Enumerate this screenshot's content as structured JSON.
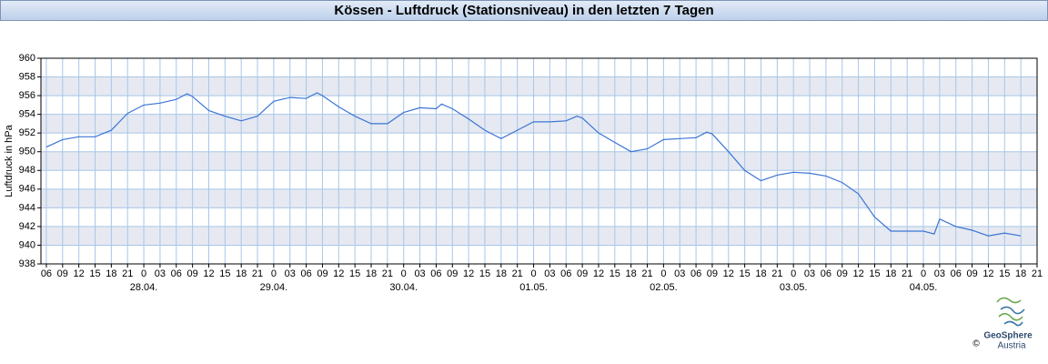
{
  "chart_data": {
    "type": "line",
    "title": "Kössen - Luftdruck (Stationsniveau) in den letzten 7 Tagen",
    "y_label": "Luftdruck in hPa",
    "color": "#3b74d6",
    "grid": true,
    "x": [
      -18,
      -15,
      -12,
      -9,
      -6,
      -3,
      0,
      3,
      6,
      8,
      9,
      12,
      15,
      18,
      21,
      24,
      27,
      30,
      32,
      33,
      36,
      39,
      42,
      45,
      48,
      51,
      54,
      55,
      57,
      60,
      63,
      66,
      69,
      72,
      75,
      78,
      80,
      81,
      84,
      87,
      90,
      93,
      96,
      99,
      102,
      104,
      105,
      108,
      111,
      114,
      117,
      120,
      123,
      126,
      129,
      132,
      135,
      138,
      141,
      144,
      146,
      147,
      150,
      153,
      156,
      159,
      162
    ],
    "values": [
      950.5,
      951.3,
      951.6,
      951.6,
      952.3,
      954.1,
      955.0,
      955.2,
      955.6,
      956.2,
      955.9,
      954.4,
      953.8,
      953.3,
      953.8,
      955.4,
      955.8,
      955.7,
      956.3,
      956.0,
      954.8,
      953.8,
      953.0,
      953.0,
      954.2,
      954.7,
      954.6,
      955.1,
      954.6,
      953.5,
      952.3,
      951.4,
      952.3,
      953.2,
      953.2,
      953.3,
      953.8,
      953.6,
      952.0,
      951.0,
      950.0,
      950.3,
      951.3,
      951.4,
      951.5,
      952.1,
      951.9,
      950.0,
      948.0,
      946.9,
      947.5,
      947.8,
      947.7,
      947.4,
      946.7,
      945.5,
      943.0,
      941.5,
      941.5,
      941.5,
      941.2,
      942.8,
      942.0,
      941.6,
      941.0,
      941.3,
      941.0
    ],
    "xlim": [
      -19,
      165
    ],
    "xticks": [
      {
        "value": -18,
        "label": "06"
      },
      {
        "value": -15,
        "label": "09"
      },
      {
        "value": -12,
        "label": "12"
      },
      {
        "value": -9,
        "label": "15"
      },
      {
        "value": -6,
        "label": "18"
      },
      {
        "value": -3,
        "label": "21"
      },
      {
        "value": 0,
        "label": "0"
      },
      {
        "value": 3,
        "label": "03"
      },
      {
        "value": 6,
        "label": "06"
      },
      {
        "value": 9,
        "label": "09"
      },
      {
        "value": 12,
        "label": "12"
      },
      {
        "value": 15,
        "label": "15"
      },
      {
        "value": 18,
        "label": "18"
      },
      {
        "value": 21,
        "label": "21"
      },
      {
        "value": 24,
        "label": "0"
      },
      {
        "value": 27,
        "label": "03"
      },
      {
        "value": 30,
        "label": "06"
      },
      {
        "value": 33,
        "label": "09"
      },
      {
        "value": 36,
        "label": "12"
      },
      {
        "value": 39,
        "label": "15"
      },
      {
        "value": 42,
        "label": "18"
      },
      {
        "value": 45,
        "label": "21"
      },
      {
        "value": 48,
        "label": "0"
      },
      {
        "value": 51,
        "label": "03"
      },
      {
        "value": 54,
        "label": "06"
      },
      {
        "value": 57,
        "label": "09"
      },
      {
        "value": 60,
        "label": "12"
      },
      {
        "value": 63,
        "label": "15"
      },
      {
        "value": 66,
        "label": "18"
      },
      {
        "value": 69,
        "label": "21"
      },
      {
        "value": 72,
        "label": "0"
      },
      {
        "value": 75,
        "label": "03"
      },
      {
        "value": 78,
        "label": "06"
      },
      {
        "value": 81,
        "label": "09"
      },
      {
        "value": 84,
        "label": "12"
      },
      {
        "value": 87,
        "label": "15"
      },
      {
        "value": 90,
        "label": "18"
      },
      {
        "value": 93,
        "label": "21"
      },
      {
        "value": 96,
        "label": "0"
      },
      {
        "value": 99,
        "label": "03"
      },
      {
        "value": 102,
        "label": "06"
      },
      {
        "value": 105,
        "label": "09"
      },
      {
        "value": 108,
        "label": "12"
      },
      {
        "value": 111,
        "label": "15"
      },
      {
        "value": 114,
        "label": "18"
      },
      {
        "value": 117,
        "label": "21"
      },
      {
        "value": 120,
        "label": "0"
      },
      {
        "value": 123,
        "label": "03"
      },
      {
        "value": 126,
        "label": "06"
      },
      {
        "value": 129,
        "label": "09"
      },
      {
        "value": 132,
        "label": "12"
      },
      {
        "value": 135,
        "label": "15"
      },
      {
        "value": 138,
        "label": "18"
      },
      {
        "value": 141,
        "label": "21"
      },
      {
        "value": 144,
        "label": "0"
      },
      {
        "value": 147,
        "label": "03"
      },
      {
        "value": 150,
        "label": "06"
      },
      {
        "value": 153,
        "label": "09"
      },
      {
        "value": 156,
        "label": "12"
      },
      {
        "value": 159,
        "label": "15"
      },
      {
        "value": 162,
        "label": "18"
      },
      {
        "value": 165,
        "label": "21"
      }
    ],
    "date_labels": [
      {
        "value": 0,
        "label": "28.04."
      },
      {
        "value": 24,
        "label": "29.04."
      },
      {
        "value": 48,
        "label": "30.04."
      },
      {
        "value": 72,
        "label": "01.05."
      },
      {
        "value": 96,
        "label": "02.05."
      },
      {
        "value": 120,
        "label": "03.05."
      },
      {
        "value": 144,
        "label": "04.05."
      }
    ],
    "ylim": [
      938,
      960
    ],
    "yticks": [
      938,
      940,
      942,
      944,
      946,
      948,
      950,
      952,
      954,
      956,
      958,
      960
    ]
  },
  "logo": {
    "name": "GeoSphere",
    "sub": "Austria",
    "copyright": "©"
  }
}
